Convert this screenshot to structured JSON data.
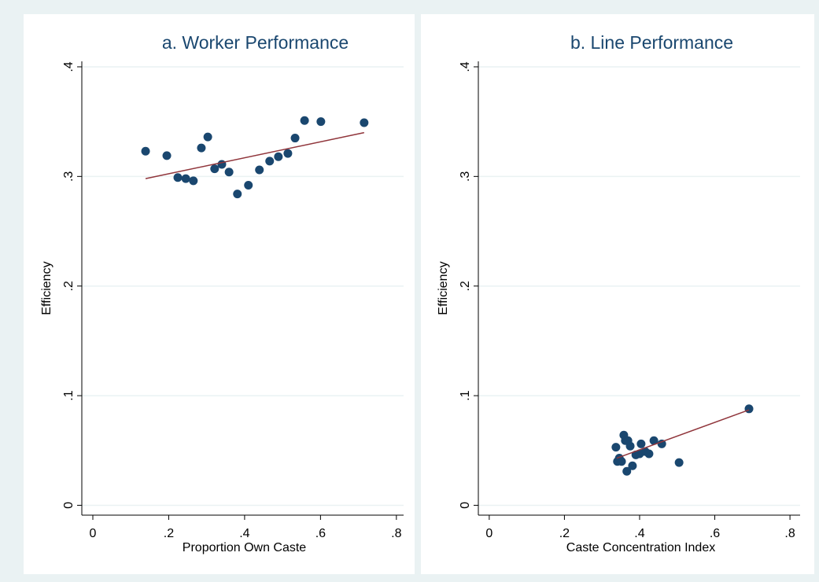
{
  "chart_data": [
    {
      "type": "scatter",
      "title": "a. Worker Performance",
      "xlabel": "Proportion Own Caste",
      "ylabel": "Efficiency",
      "xlim": [
        -0.029,
        0.819
      ],
      "ylim": [
        -0.009,
        0.405
      ],
      "xticks": [
        0,
        {
          "value": 0.2,
          "label": ".2"
        },
        {
          "value": 0.4,
          "label": ".4"
        },
        {
          "value": 0.6,
          "label": ".6"
        },
        {
          "value": 0.8,
          "label": ".8"
        }
      ],
      "yticks": [
        0,
        {
          "value": 0.1,
          "label": ".1"
        },
        {
          "value": 0.2,
          "label": ".2"
        },
        {
          "value": 0.3,
          "label": ".3"
        },
        {
          "value": 0.4,
          "label": ".4"
        }
      ],
      "grid": true,
      "series": [
        {
          "type": "scatter",
          "color": "#1a476f",
          "x": [
            0.139,
            0.195,
            0.224,
            0.245,
            0.265,
            0.286,
            0.303,
            0.321,
            0.34,
            0.359,
            0.381,
            0.41,
            0.439,
            0.466,
            0.489,
            0.514,
            0.533,
            0.558,
            0.601,
            0.715
          ],
          "values": [
            0.323,
            0.319,
            0.299,
            0.298,
            0.296,
            0.326,
            0.336,
            0.307,
            0.311,
            0.304,
            0.284,
            0.292,
            0.306,
            0.314,
            0.318,
            0.321,
            0.335,
            0.351,
            0.35,
            0.349
          ]
        },
        {
          "type": "line",
          "color": "#90353b",
          "x": [
            0.139,
            0.715
          ],
          "values": [
            0.298,
            0.34
          ]
        }
      ]
    },
    {
      "type": "scatter",
      "title": "b. Line Performance",
      "xlabel": "Caste Concentration Index",
      "ylabel": "Efficiency",
      "xlim": [
        -0.029,
        0.827
      ],
      "ylim": [
        -0.009,
        0.405
      ],
      "xticks": [
        0,
        {
          "value": 0.2,
          "label": ".2"
        },
        {
          "value": 0.4,
          "label": ".4"
        },
        {
          "value": 0.6,
          "label": ".6"
        },
        {
          "value": 0.8,
          "label": ".8"
        }
      ],
      "yticks": [
        0,
        {
          "value": 0.1,
          "label": ".1"
        },
        {
          "value": 0.2,
          "label": ".2"
        },
        {
          "value": 0.3,
          "label": ".3"
        },
        {
          "value": 0.4,
          "label": ".4"
        }
      ],
      "grid": true,
      "series": [
        {
          "type": "scatter",
          "color": "#1a476f",
          "x": [
            0.337,
            0.341,
            0.346,
            0.352,
            0.358,
            0.362,
            0.369,
            0.366,
            0.375,
            0.381,
            0.39,
            0.4,
            0.404,
            0.415,
            0.425,
            0.438,
            0.459,
            0.505,
            0.691
          ],
          "values": [
            0.053,
            0.04,
            0.043,
            0.04,
            0.064,
            0.059,
            0.059,
            0.031,
            0.054,
            0.036,
            0.046,
            0.047,
            0.056,
            0.049,
            0.047,
            0.059,
            0.056,
            0.039,
            0.088
          ]
        },
        {
          "type": "line",
          "color": "#90353b",
          "x": [
            0.339,
            0.691
          ],
          "values": [
            0.043,
            0.087
          ]
        }
      ]
    }
  ]
}
